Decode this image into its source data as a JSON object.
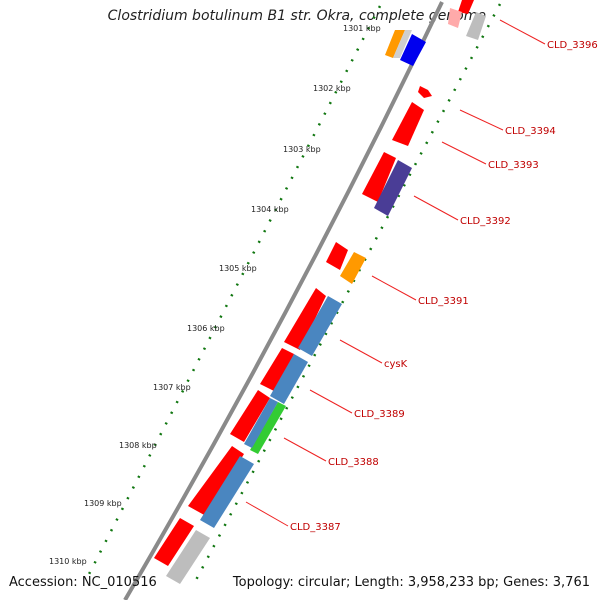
{
  "title": "Clostridium botulinum B1 str. Okra, complete genome",
  "footer": {
    "accession": "Accession: NC_010516",
    "summary": "Topology: circular; Length: 3,958,233 bp; Genes: 3,761"
  },
  "ticks": [
    "1301 kbp",
    "1302 kbp",
    "1303 kbp",
    "1304 kbp",
    "1305 kbp",
    "1306 kbp",
    "1307 kbp",
    "1308 kbp",
    "1309 kbp",
    "1310 kbp"
  ],
  "gene_labels": [
    "CLD_3396",
    "CLD_3394",
    "CLD_3393",
    "CLD_3392",
    "CLD_3391",
    "cysK",
    "CLD_3389",
    "CLD_3388",
    "CLD_3387"
  ],
  "colors": {
    "backbone": "#7a7a7a",
    "cds_red": "#ff0000",
    "blue": "#4a86c0",
    "orange": "#ff9900",
    "purple": "#4a3d96",
    "green": "#33cc33",
    "gray": "#bdbdbd",
    "bright_blue": "#0000ee",
    "dotted_ring": "#117711",
    "label": "#c00000"
  }
}
